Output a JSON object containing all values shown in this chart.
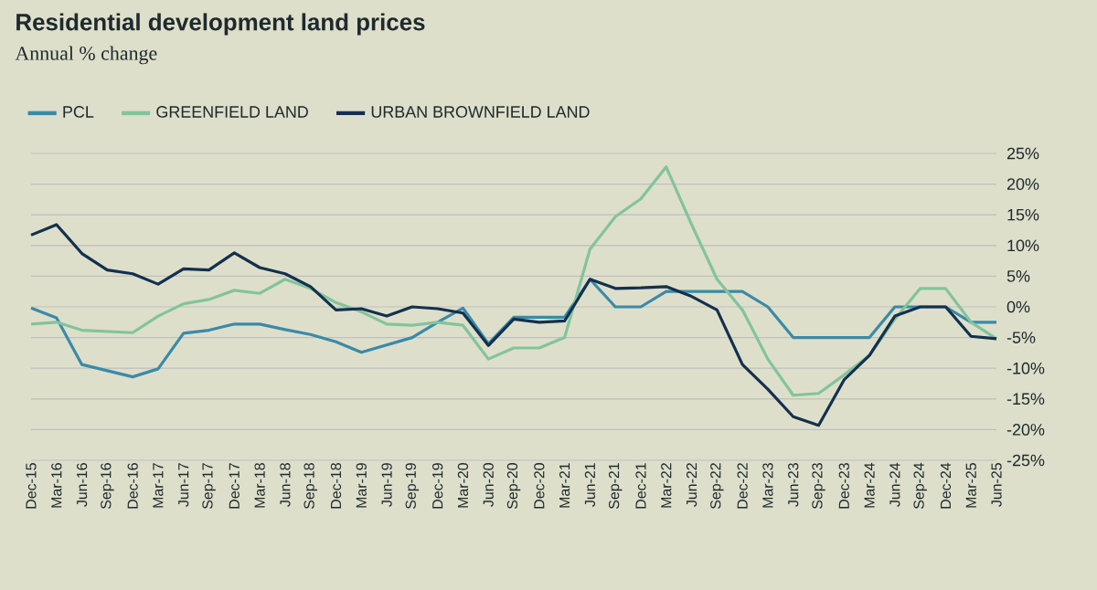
{
  "chart_data": {
    "type": "line",
    "title": "Residential development land prices",
    "subtitle": "Annual % change",
    "categories": [
      "Dec-15",
      "Mar-16",
      "Jun-16",
      "Sep-16",
      "Dec-16",
      "Mar-17",
      "Jun-17",
      "Sep-17",
      "Dec-17",
      "Mar-18",
      "Jun-18",
      "Sep-18",
      "Dec-18",
      "Mar-19",
      "Jun-19",
      "Sep-19",
      "Dec-19",
      "Mar-20",
      "Jun-20",
      "Sep-20",
      "Dec-20",
      "Mar-21",
      "Jun-21",
      "Sep-21",
      "Dec-21",
      "Mar-22",
      "Jun-22",
      "Sep-22",
      "Dec-22",
      "Mar-23",
      "Jun-23",
      "Sep-23",
      "Dec-23",
      "Mar-24",
      "Jun-24",
      "Sep-24",
      "Dec-24",
      "Mar-25",
      "Jun-25"
    ],
    "series": [
      {
        "name": "PCL",
        "color": "#3a8aa8",
        "values": [
          -0.2,
          -1.8,
          -9.4,
          -10.4,
          -11.4,
          -10.1,
          -4.3,
          -3.8,
          -2.8,
          -2.8,
          -3.7,
          -4.5,
          -5.7,
          -7.4,
          -6.2,
          -5.0,
          -2.5,
          -0.2,
          -6.0,
          -1.7,
          -1.7,
          -1.7,
          4.5,
          0,
          0,
          2.5,
          2.5,
          2.5,
          2.5,
          0,
          -5.0,
          -5.0,
          -5.0,
          -5.0,
          0,
          0,
          0,
          -2.5,
          -2.5
        ]
      },
      {
        "name": "GREENFIELD LAND",
        "color": "#82c49c",
        "values": [
          -2.8,
          -2.5,
          -3.8,
          -4.0,
          -4.2,
          -1.5,
          0.5,
          1.2,
          2.7,
          2.2,
          4.5,
          3.0,
          0.7,
          -0.8,
          -2.8,
          -3.0,
          -2.5,
          -3.0,
          -8.5,
          -6.7,
          -6.7,
          -5.0,
          9.4,
          14.7,
          17.6,
          22.8,
          13.4,
          4.5,
          -0.5,
          -8.5,
          -14.4,
          -14.1,
          -11.1,
          -7.9,
          -2.0,
          3.0,
          3.0,
          -2.5,
          -5.2
        ]
      },
      {
        "name": "URBAN BROWNFIELD LAND",
        "color": "#13304f",
        "values": [
          11.7,
          13.4,
          8.7,
          6.0,
          5.4,
          3.7,
          6.2,
          6.0,
          8.8,
          6.4,
          5.4,
          3.3,
          -0.5,
          -0.3,
          -1.5,
          0,
          -0.3,
          -1.0,
          -6.3,
          -2.0,
          -2.5,
          -2.3,
          4.5,
          3.0,
          3.1,
          3.3,
          1.7,
          -0.5,
          -9.4,
          -13.4,
          -17.9,
          -19.3,
          -11.9,
          -7.9,
          -1.5,
          0,
          0,
          -4.8,
          -5.2
        ]
      }
    ],
    "ylim": [
      -25,
      25
    ],
    "yticks": [
      {
        "value": 25,
        "label": "25%"
      },
      {
        "value": 20,
        "label": "20%"
      },
      {
        "value": 15,
        "label": "15%"
      },
      {
        "value": 10,
        "label": "10%"
      },
      {
        "value": 5,
        "label": "5%"
      },
      {
        "value": 0,
        "label": "0%"
      },
      {
        "value": -5,
        "label": "-5%"
      },
      {
        "value": -10,
        "label": "-10%"
      },
      {
        "value": -15,
        "label": "-15%"
      },
      {
        "value": -20,
        "label": "-20%"
      },
      {
        "value": -25,
        "label": "-25%"
      }
    ],
    "grid": "y",
    "legend": "top left",
    "marker": "none",
    "line_style": "solid"
  }
}
